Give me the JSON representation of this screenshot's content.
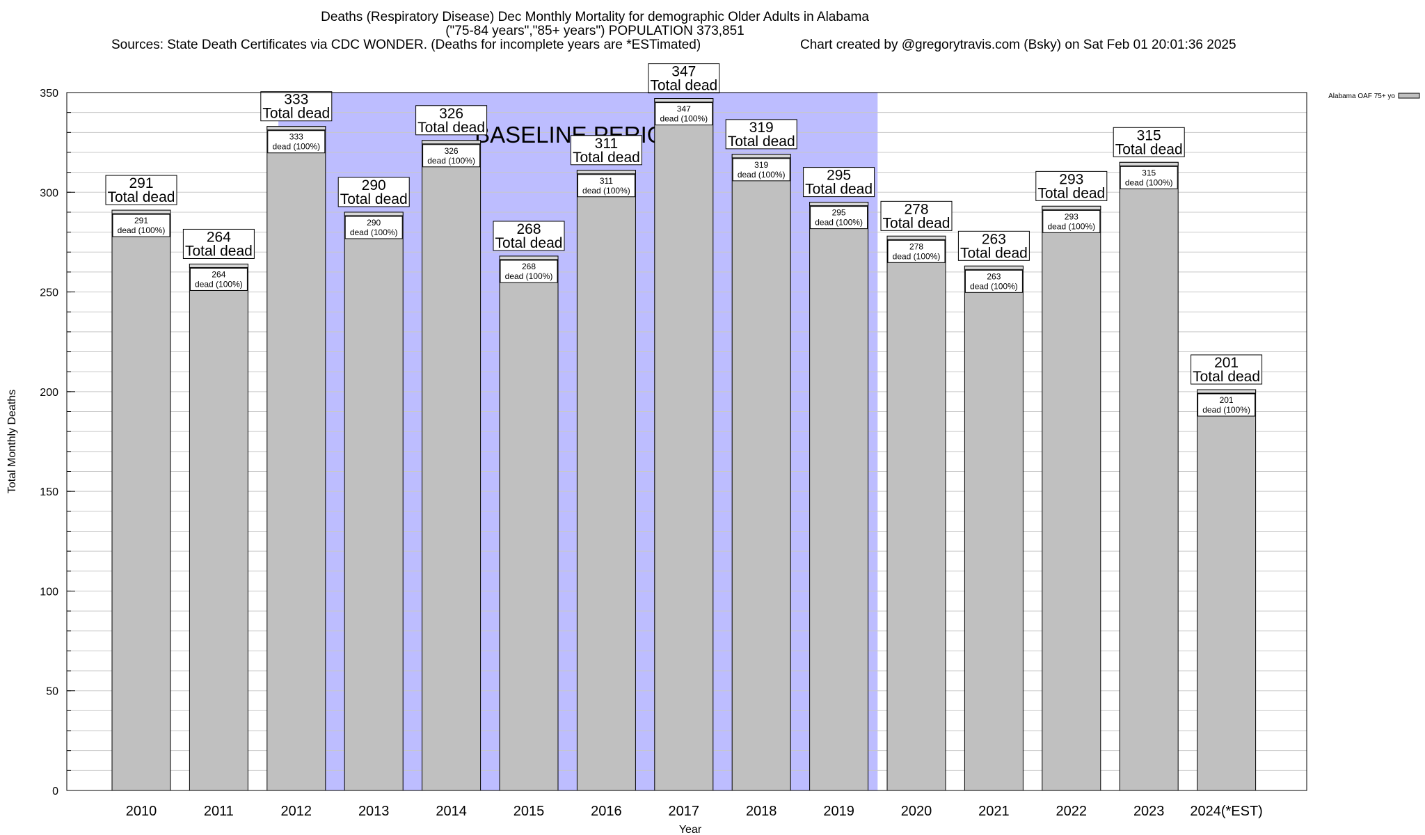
{
  "title_lines": [
    "Deaths (Respiratory Disease) Dec Monthly Mortality for demographic Older Adults in Alabama",
    "(\"75-84 years\",\"85+ years\") POPULATION 373,851",
    "Sources: State Death Certificates via CDC WONDER. (Deaths for incomplete years are *ESTimated)",
    "Chart created by @gregorytravis.com (Bsky) on Sat Feb 01 20:01:36 2025"
  ],
  "colors": {
    "bar": "#c0c0c0",
    "baseline": "#bdbdff",
    "grid": "#c8c8c8"
  },
  "chart_data": {
    "type": "bar",
    "categories": [
      "2010",
      "2011",
      "2012",
      "2013",
      "2014",
      "2015",
      "2016",
      "2017",
      "2018",
      "2019",
      "2020",
      "2021",
      "2022",
      "2023",
      "2024(*EST)"
    ],
    "series": [
      {
        "name": "Alabama OAF 75+ yo",
        "values": [
          291,
          264,
          333,
          290,
          326,
          268,
          311,
          347,
          319,
          295,
          278,
          263,
          293,
          315,
          201
        ]
      }
    ],
    "bar_label_total": "Total dead",
    "bar_label_inner": "dead (100%)",
    "xlabel": "Year",
    "ylabel": "Total Monthly Deaths",
    "ylim": [
      0,
      350
    ],
    "yticks": [
      0,
      50,
      100,
      150,
      200,
      250,
      300,
      350
    ],
    "minor_tick_step": 10,
    "baseline_period": {
      "label": "BASELINE PERIOD",
      "start": "2012",
      "end": "2019"
    },
    "legend_position": "top-right",
    "grid": true
  }
}
